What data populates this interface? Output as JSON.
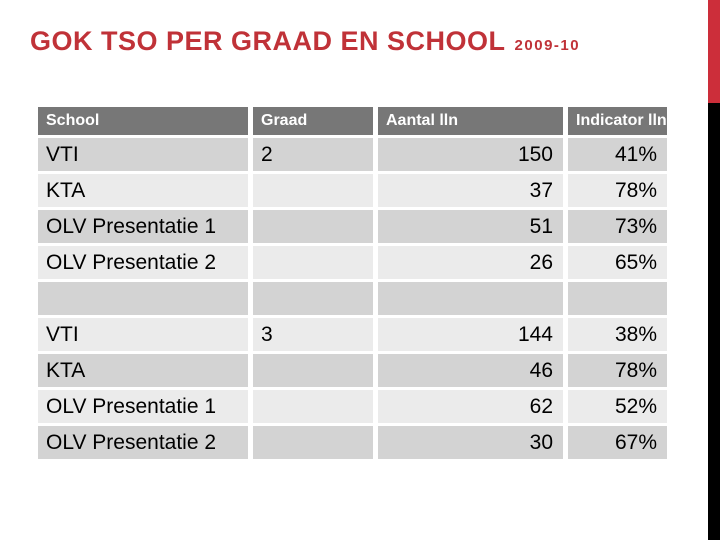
{
  "slide": {
    "title": "GOK TSO PER GRAAD EN SCHOOL",
    "title_suffix": "2009-10"
  },
  "colors": {
    "title_red": "#C03238",
    "accent_bar_red": "#CC2E3A",
    "accent_bar_black": "#000000",
    "table_header_bg": "#777777",
    "table_header_text": "#FFFFFF",
    "row_band_dark": "#D3D3D3",
    "row_band_light": "#EBEBEB",
    "cell_text": "#000000"
  },
  "table": {
    "columns": [
      {
        "label": "School",
        "align": "left"
      },
      {
        "label": "Graad",
        "align": "left"
      },
      {
        "label": "Aantal lln",
        "align": "right"
      },
      {
        "label": "Indicator lln",
        "align": "right"
      }
    ],
    "rows": [
      {
        "school": "VTI",
        "graad": "2",
        "aantal": "150",
        "indicator": "41%"
      },
      {
        "school": "KTA",
        "graad": "",
        "aantal": "37",
        "indicator": "78%"
      },
      {
        "school": "OLV Presentatie 1",
        "graad": "",
        "aantal": "51",
        "indicator": "73%"
      },
      {
        "school": "OLV Presentatie 2",
        "graad": "",
        "aantal": "26",
        "indicator": "65%"
      },
      {
        "school": "",
        "graad": "",
        "aantal": "",
        "indicator": ""
      },
      {
        "school": "VTI",
        "graad": "3",
        "aantal": "144",
        "indicator": "38%"
      },
      {
        "school": "KTA",
        "graad": "",
        "aantal": "46",
        "indicator": "78%"
      },
      {
        "school": "OLV Presentatie 1",
        "graad": "",
        "aantal": "62",
        "indicator": "52%"
      },
      {
        "school": "OLV Presentatie 2",
        "graad": "",
        "aantal": "30",
        "indicator": "67%"
      }
    ]
  }
}
